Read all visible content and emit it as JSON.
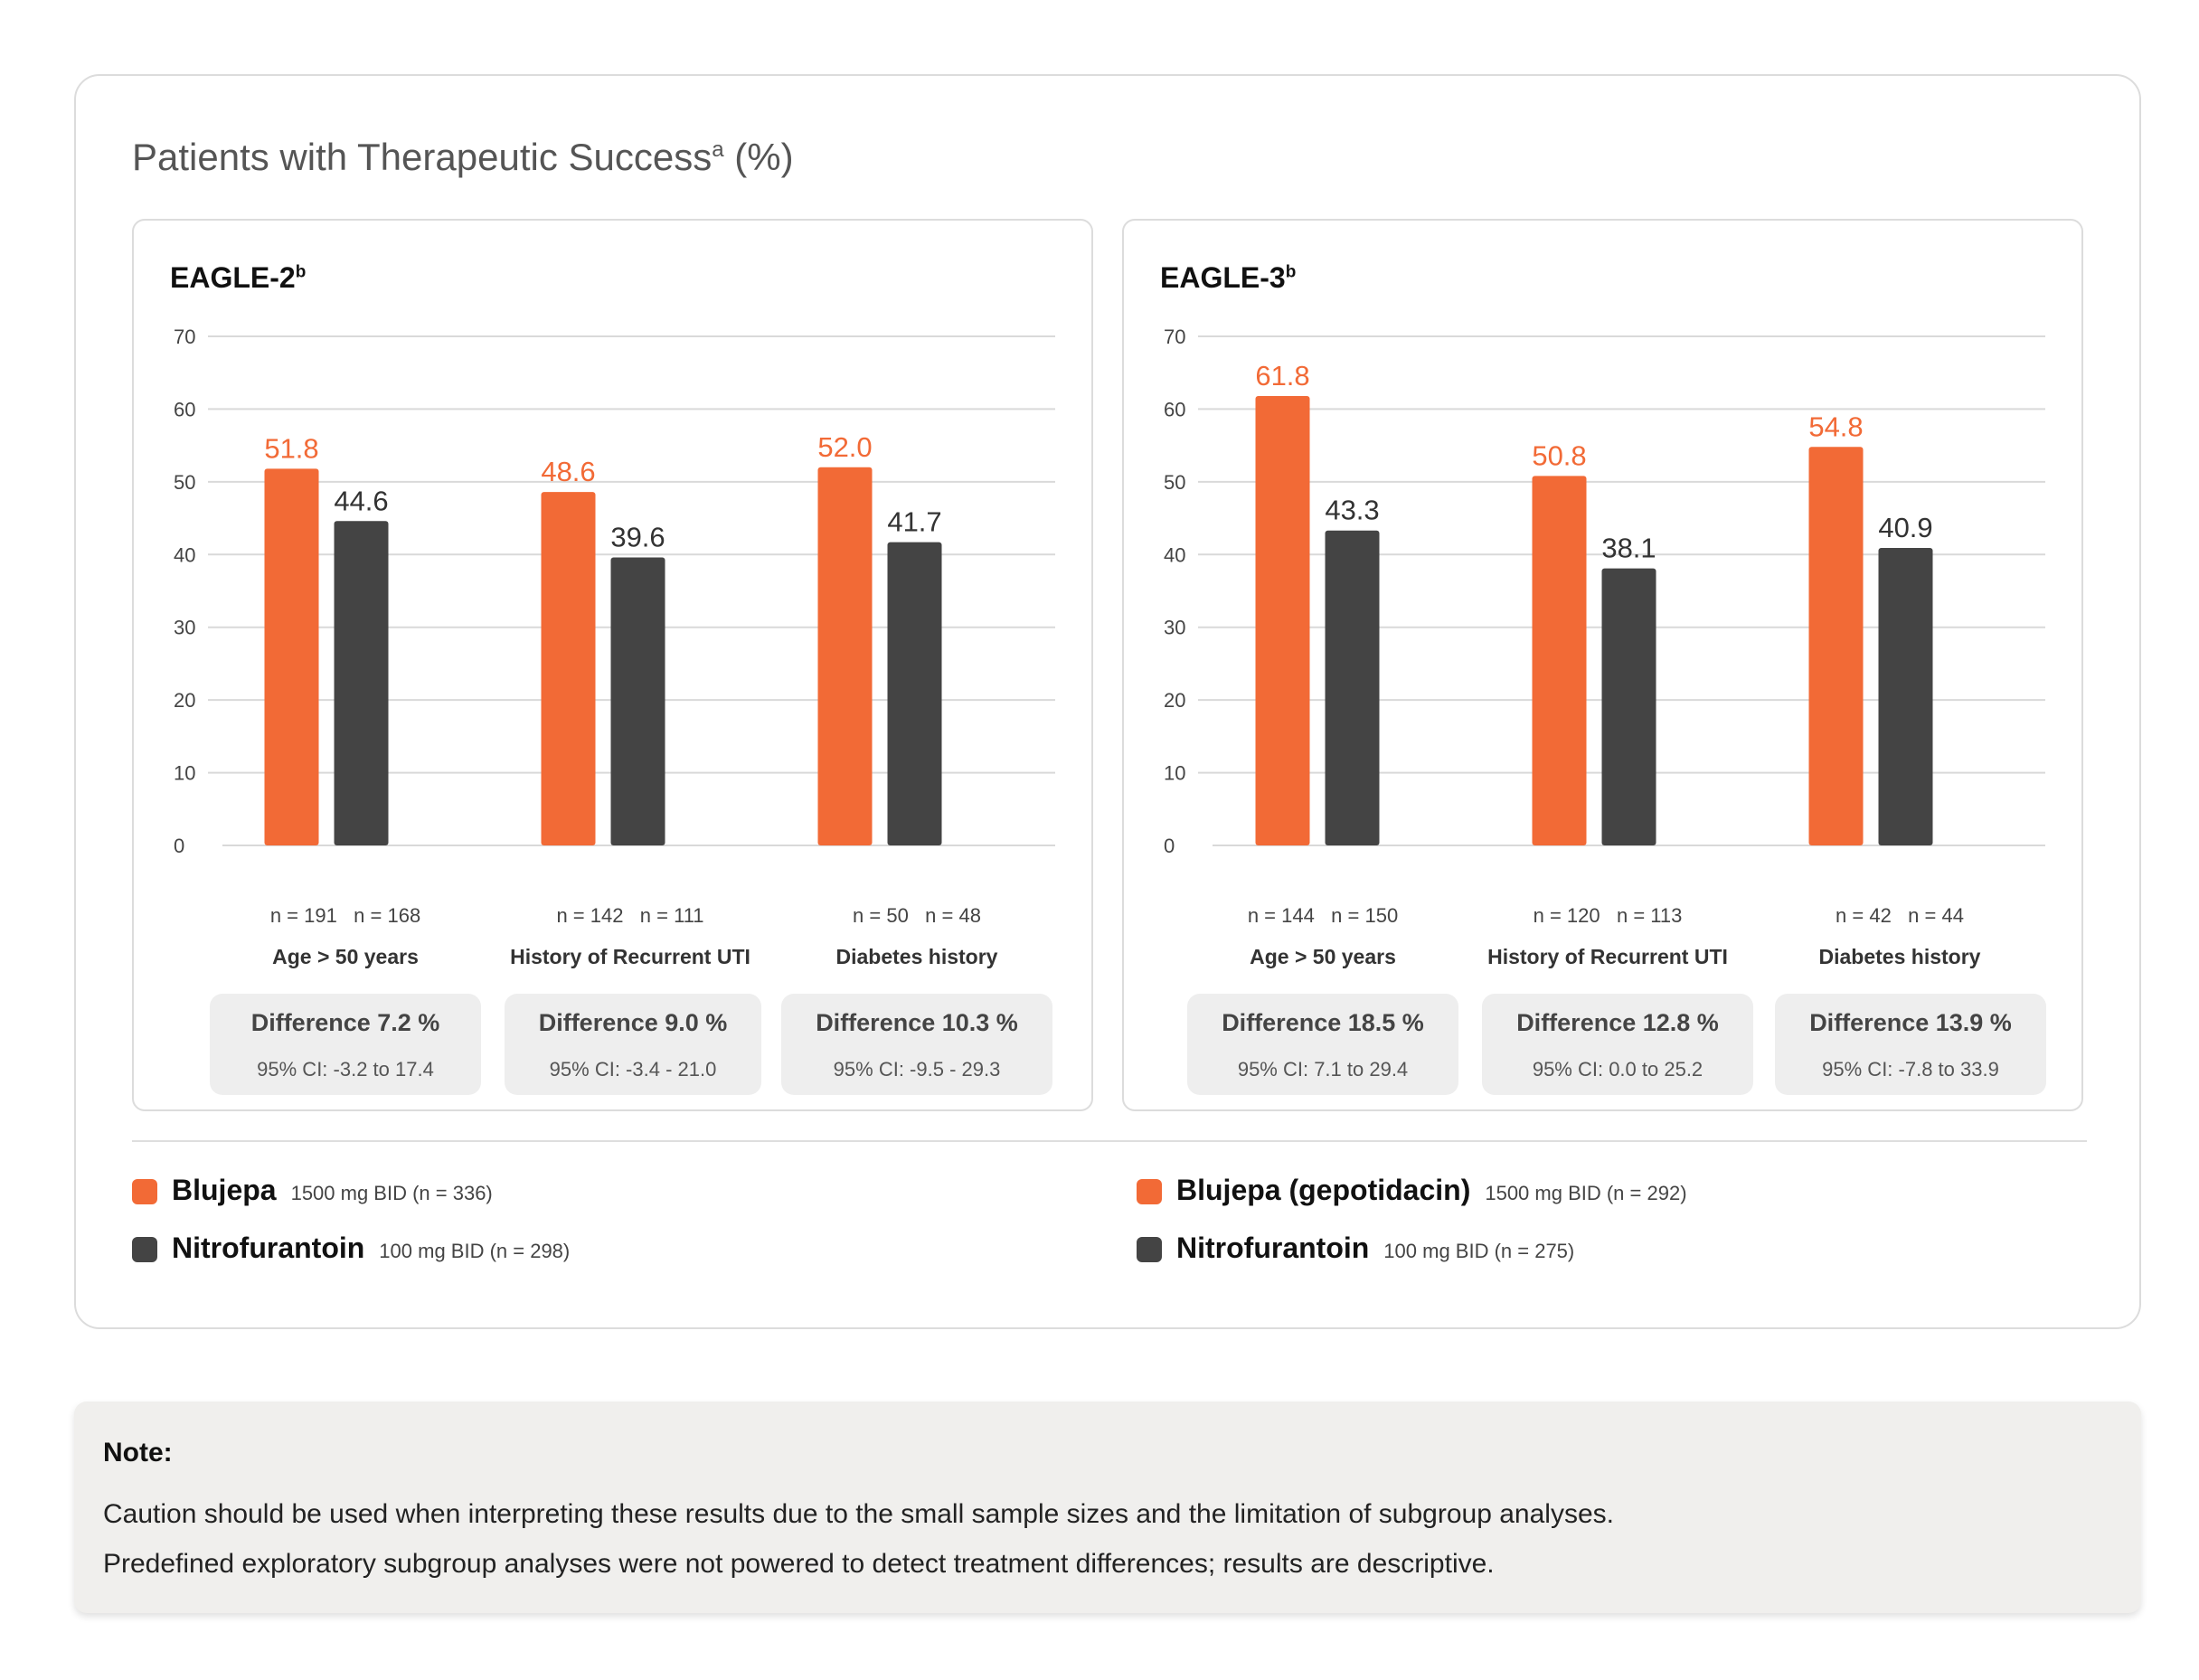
{
  "title": "Patients with Therapeutic Success",
  "title_sup": "a",
  "title_suffix": "(%)",
  "colors": {
    "blujepa": "#f26a36",
    "nitrofurantoin": "#444444",
    "grid": "#d9d9d9"
  },
  "chart_data": [
    {
      "type": "bar",
      "title": "EAGLE-2",
      "title_sup": "b",
      "ylim": [
        0,
        70
      ],
      "yticks": [
        0,
        10,
        20,
        30,
        40,
        50,
        60,
        70
      ],
      "grid": true,
      "categories": [
        "Age > 50 years",
        "History of Recurrent UTI",
        "Diabetes history"
      ],
      "series": [
        {
          "name": "Blujepa",
          "values": [
            51.8,
            48.6,
            52.0
          ],
          "labels": [
            "51.8",
            "48.6",
            "52.0"
          ],
          "n": [
            "n = 191",
            "n = 142",
            "n = 50"
          ]
        },
        {
          "name": "Nitrofurantoin",
          "values": [
            44.6,
            39.6,
            41.7
          ],
          "labels": [
            "44.6",
            "39.6",
            "41.7"
          ],
          "n": [
            "n = 168",
            "n = 111",
            "n = 48"
          ]
        }
      ],
      "differences": [
        {
          "label": "Difference 7.2 %",
          "ci": "95% CI: -3.2 to 17.4"
        },
        {
          "label": "Difference 9.0 %",
          "ci": "95% CI: -3.4 - 21.0"
        },
        {
          "label": "Difference 10.3 %",
          "ci": "95% CI: -9.5 - 29.3"
        }
      ]
    },
    {
      "type": "bar",
      "title": "EAGLE-3",
      "title_sup": "b",
      "ylim": [
        0,
        70
      ],
      "yticks": [
        0,
        10,
        20,
        30,
        40,
        50,
        60,
        70
      ],
      "grid": true,
      "categories": [
        "Age > 50 years",
        "History of Recurrent UTI",
        "Diabetes history"
      ],
      "series": [
        {
          "name": "Blujepa",
          "values": [
            61.8,
            50.8,
            54.8
          ],
          "labels": [
            "61.8",
            "50.8",
            "54.8"
          ],
          "n": [
            "n = 144",
            "n = 120",
            "n = 42"
          ]
        },
        {
          "name": "Nitrofurantoin",
          "values": [
            43.3,
            38.1,
            40.9
          ],
          "labels": [
            "43.3",
            "38.1",
            "40.9"
          ],
          "n": [
            "n = 150",
            "n = 113",
            "n = 44"
          ]
        }
      ],
      "differences": [
        {
          "label": "Difference 18.5 %",
          "ci": "95% CI: 7.1 to 29.4"
        },
        {
          "label": "Difference 12.8 %",
          "ci": "95% CI: 0.0 to 25.2"
        },
        {
          "label": "Difference 13.9 %",
          "ci": "95% CI: -7.8 to 33.9"
        }
      ]
    }
  ],
  "legends": [
    [
      {
        "name": "Blujepa",
        "dose": "1500 mg BID (n = 336)"
      },
      {
        "name": "Nitrofurantoin",
        "dose": "100 mg BID (n = 298)"
      }
    ],
    [
      {
        "name": "Blujepa (gepotidacin)",
        "dose": "1500 mg BID (n = 292)"
      },
      {
        "name": "Nitrofurantoin",
        "dose": "100 mg BID (n = 275)"
      }
    ]
  ],
  "note": {
    "title": "Note:",
    "lines": [
      "Caution should be used when interpreting these results due to the small sample sizes and the limitation of subgroup analyses.",
      "Predefined exploratory subgroup analyses were not powered to detect treatment differences; results are descriptive."
    ]
  }
}
